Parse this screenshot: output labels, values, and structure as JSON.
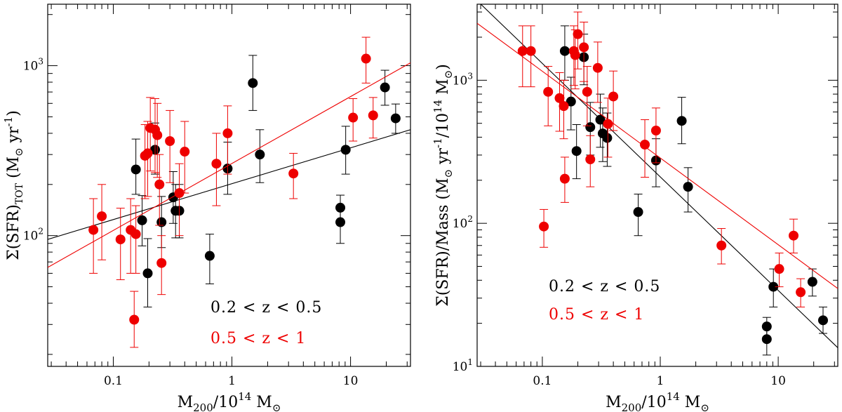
{
  "chart_data": [
    {
      "type": "scatter",
      "xscale": "log",
      "yscale": "log",
      "xlim": [
        0.028,
        32
      ],
      "ylim": [
        17,
        2300
      ],
      "xticklabels": [
        {
          "v": 0.1,
          "label": "0.1"
        },
        {
          "v": 1,
          "label": "1"
        },
        {
          "v": 10,
          "label": "10"
        }
      ],
      "yticklabels": [
        {
          "v": 100,
          "base": "10",
          "exp": "2"
        },
        {
          "v": 1000,
          "base": "10",
          "exp": "3"
        }
      ],
      "xlabel": {
        "main": "M",
        "sub": "200",
        "mid": "/10",
        "sup": "14",
        "unit": " M",
        "unitsub": "⊙"
      },
      "ylabel": {
        "pre": "Σ(SFR)",
        "sub": "TOT",
        "unit": " (M",
        "unitsub": "⊙",
        "post": " yr",
        "sup": "-1",
        "close": ")"
      },
      "legend": {
        "placement": "bottom-right",
        "entries": [
          "0.2 < z < 0.5",
          "0.5 < z < 1"
        ]
      },
      "series": [
        {
          "name": "0.2 < z < 0.5",
          "color": "#000000",
          "points": [
            {
              "x": 0.155,
              "y": 245,
              "lo": 175,
              "hi": 370
            },
            {
              "x": 0.175,
              "y": 123,
              "lo": 87,
              "hi": 172
            },
            {
              "x": 0.195,
              "y": 60,
              "lo": 38,
              "hi": 96
            },
            {
              "x": 0.225,
              "y": 320,
              "lo": 230,
              "hi": 460
            },
            {
              "x": 0.255,
              "y": 120,
              "lo": 85,
              "hi": 170
            },
            {
              "x": 0.32,
              "y": 168,
              "lo": 118,
              "hi": 238
            },
            {
              "x": 0.335,
              "y": 140,
              "lo": 97,
              "hi": 200
            },
            {
              "x": 0.36,
              "y": 140,
              "lo": 97,
              "hi": 200
            },
            {
              "x": 0.65,
              "y": 76,
              "lo": 52,
              "hi": 102
            },
            {
              "x": 0.92,
              "y": 248,
              "lo": 175,
              "hi": 355
            },
            {
              "x": 1.5,
              "y": 790,
              "lo": 545,
              "hi": 1150
            },
            {
              "x": 1.72,
              "y": 300,
              "lo": 205,
              "hi": 420
            },
            {
              "x": 8.2,
              "y": 146,
              "lo": 123,
              "hi": 173
            },
            {
              "x": 8.2,
              "y": 120,
              "lo": 90,
              "hi": 150
            },
            {
              "x": 9.1,
              "y": 320,
              "lo": 230,
              "hi": 440
            },
            {
              "x": 19.5,
              "y": 745,
              "lo": 585,
              "hi": 940
            },
            {
              "x": 24,
              "y": 490,
              "lo": 400,
              "hi": 595
            }
          ],
          "fit": [
            [
              0.028,
              95
            ],
            [
              32,
              420
            ]
          ]
        },
        {
          "name": "0.5 < z < 1",
          "color": "#ee0000",
          "points": [
            {
              "x": 0.068,
              "y": 108,
              "lo": 60,
              "hi": 165
            },
            {
              "x": 0.08,
              "y": 130,
              "lo": 72,
              "hi": 200
            },
            {
              "x": 0.115,
              "y": 95,
              "lo": 55,
              "hi": 145
            },
            {
              "x": 0.14,
              "y": 108,
              "lo": 60,
              "hi": 165
            },
            {
              "x": 0.15,
              "y": 32,
              "lo": 22,
              "hi": 47
            },
            {
              "x": 0.155,
              "y": 102,
              "lo": 60,
              "hi": 150
            },
            {
              "x": 0.185,
              "y": 295,
              "lo": 165,
              "hi": 450
            },
            {
              "x": 0.195,
              "y": 305,
              "lo": 170,
              "hi": 470
            },
            {
              "x": 0.205,
              "y": 430,
              "lo": 240,
              "hi": 650
            },
            {
              "x": 0.225,
              "y": 420,
              "lo": 235,
              "hi": 640
            },
            {
              "x": 0.235,
              "y": 390,
              "lo": 220,
              "hi": 600
            },
            {
              "x": 0.245,
              "y": 200,
              "lo": 115,
              "hi": 300
            },
            {
              "x": 0.255,
              "y": 69,
              "lo": 45,
              "hi": 100
            },
            {
              "x": 0.3,
              "y": 360,
              "lo": 205,
              "hi": 545
            },
            {
              "x": 0.36,
              "y": 178,
              "lo": 100,
              "hi": 265
            },
            {
              "x": 0.4,
              "y": 312,
              "lo": 178,
              "hi": 470
            },
            {
              "x": 0.74,
              "y": 265,
              "lo": 150,
              "hi": 400
            },
            {
              "x": 0.92,
              "y": 400,
              "lo": 230,
              "hi": 580
            },
            {
              "x": 3.3,
              "y": 232,
              "lo": 165,
              "hi": 305
            },
            {
              "x": 10.5,
              "y": 495,
              "lo": 360,
              "hi": 640
            },
            {
              "x": 13.5,
              "y": 1100,
              "lo": 790,
              "hi": 1470
            },
            {
              "x": 15.5,
              "y": 510,
              "lo": 375,
              "hi": 650
            }
          ],
          "fit": [
            [
              0.028,
              65
            ],
            [
              32,
              1040
            ]
          ]
        }
      ]
    },
    {
      "type": "scatter",
      "xscale": "log",
      "yscale": "log",
      "xlim": [
        0.028,
        32
      ],
      "ylim": [
        10,
        3400
      ],
      "xticklabels": [
        {
          "v": 0.1,
          "label": "0.1"
        },
        {
          "v": 1,
          "label": "1"
        },
        {
          "v": 10,
          "label": "10"
        }
      ],
      "yticklabels": [
        {
          "v": 10,
          "base": "10",
          "exp": "1"
        },
        {
          "v": 100,
          "base": "10",
          "exp": "2"
        },
        {
          "v": 1000,
          "base": "10",
          "exp": "3"
        }
      ],
      "xlabel": {
        "main": "M",
        "sub": "200",
        "mid": "/10",
        "sup": "14",
        "unit": " M",
        "unitsub": "⊙"
      },
      "ylabel": {
        "pre": "Σ(SFR)/Mass (M",
        "sub": "⊙",
        "mid": " yr",
        "sup": "-1",
        "post": "/10",
        "sup2": "14",
        "unit": " M",
        "unitsub": "⊙",
        "close": ")"
      },
      "legend": {
        "placement": "bottom-center",
        "entries": [
          "0.2 < z < 0.5",
          "0.5 < z < 1"
        ]
      },
      "series": [
        {
          "name": "0.2 < z < 0.5",
          "color": "#000000",
          "points": [
            {
              "x": 0.155,
              "y": 1600,
              "lo": 1000,
              "hi": 2400
            },
            {
              "x": 0.175,
              "y": 710,
              "lo": 450,
              "hi": 1050
            },
            {
              "x": 0.195,
              "y": 320,
              "lo": 205,
              "hi": 490
            },
            {
              "x": 0.225,
              "y": 1450,
              "lo": 930,
              "hi": 2100
            },
            {
              "x": 0.255,
              "y": 470,
              "lo": 300,
              "hi": 700
            },
            {
              "x": 0.31,
              "y": 530,
              "lo": 340,
              "hi": 800
            },
            {
              "x": 0.325,
              "y": 425,
              "lo": 270,
              "hi": 640
            },
            {
              "x": 0.355,
              "y": 395,
              "lo": 250,
              "hi": 590
            },
            {
              "x": 0.65,
              "y": 120,
              "lo": 82,
              "hi": 160
            },
            {
              "x": 0.92,
              "y": 275,
              "lo": 180,
              "hi": 390
            },
            {
              "x": 1.52,
              "y": 520,
              "lo": 360,
              "hi": 760
            },
            {
              "x": 1.72,
              "y": 180,
              "lo": 120,
              "hi": 245
            },
            {
              "x": 8.0,
              "y": 19,
              "lo": 15,
              "hi": 22
            },
            {
              "x": 8.0,
              "y": 15.5,
              "lo": 12,
              "hi": 19
            },
            {
              "x": 9.1,
              "y": 36,
              "lo": 26,
              "hi": 48
            },
            {
              "x": 19.5,
              "y": 39,
              "lo": 31,
              "hi": 48
            },
            {
              "x": 24,
              "y": 21,
              "lo": 17,
              "hi": 26
            }
          ],
          "fit": [
            [
              0.028,
              3600
            ],
            [
              32,
              13.5
            ]
          ]
        },
        {
          "name": "0.5 < z < 1",
          "color": "#ee0000",
          "points": [
            {
              "x": 0.068,
              "y": 1600,
              "lo": 900,
              "hi": 2400
            },
            {
              "x": 0.08,
              "y": 1600,
              "lo": 900,
              "hi": 2400
            },
            {
              "x": 0.103,
              "y": 95,
              "lo": 68,
              "hi": 125
            },
            {
              "x": 0.112,
              "y": 830,
              "lo": 480,
              "hi": 1250
            },
            {
              "x": 0.14,
              "y": 750,
              "lo": 440,
              "hi": 1130
            },
            {
              "x": 0.152,
              "y": 660,
              "lo": 390,
              "hi": 1000
            },
            {
              "x": 0.155,
              "y": 205,
              "lo": 140,
              "hi": 290
            },
            {
              "x": 0.185,
              "y": 1600,
              "lo": 920,
              "hi": 2400
            },
            {
              "x": 0.19,
              "y": 1500,
              "lo": 870,
              "hi": 2250
            },
            {
              "x": 0.2,
              "y": 2100,
              "lo": 1200,
              "hi": 3000
            },
            {
              "x": 0.225,
              "y": 1700,
              "lo": 980,
              "hi": 2550
            },
            {
              "x": 0.24,
              "y": 830,
              "lo": 480,
              "hi": 1250
            },
            {
              "x": 0.255,
              "y": 280,
              "lo": 180,
              "hi": 410
            },
            {
              "x": 0.295,
              "y": 1220,
              "lo": 700,
              "hi": 1850
            },
            {
              "x": 0.36,
              "y": 495,
              "lo": 290,
              "hi": 750
            },
            {
              "x": 0.4,
              "y": 770,
              "lo": 445,
              "hi": 1160
            },
            {
              "x": 0.74,
              "y": 355,
              "lo": 210,
              "hi": 530
            },
            {
              "x": 0.92,
              "y": 445,
              "lo": 265,
              "hi": 640
            },
            {
              "x": 3.3,
              "y": 70,
              "lo": 52,
              "hi": 92
            },
            {
              "x": 10.2,
              "y": 48,
              "lo": 36,
              "hi": 62
            },
            {
              "x": 13.5,
              "y": 82,
              "lo": 62,
              "hi": 107
            },
            {
              "x": 15.5,
              "y": 33,
              "lo": 26,
              "hi": 41
            }
          ],
          "fit": [
            [
              0.028,
              2500
            ],
            [
              32,
              35
            ]
          ]
        }
      ]
    }
  ]
}
